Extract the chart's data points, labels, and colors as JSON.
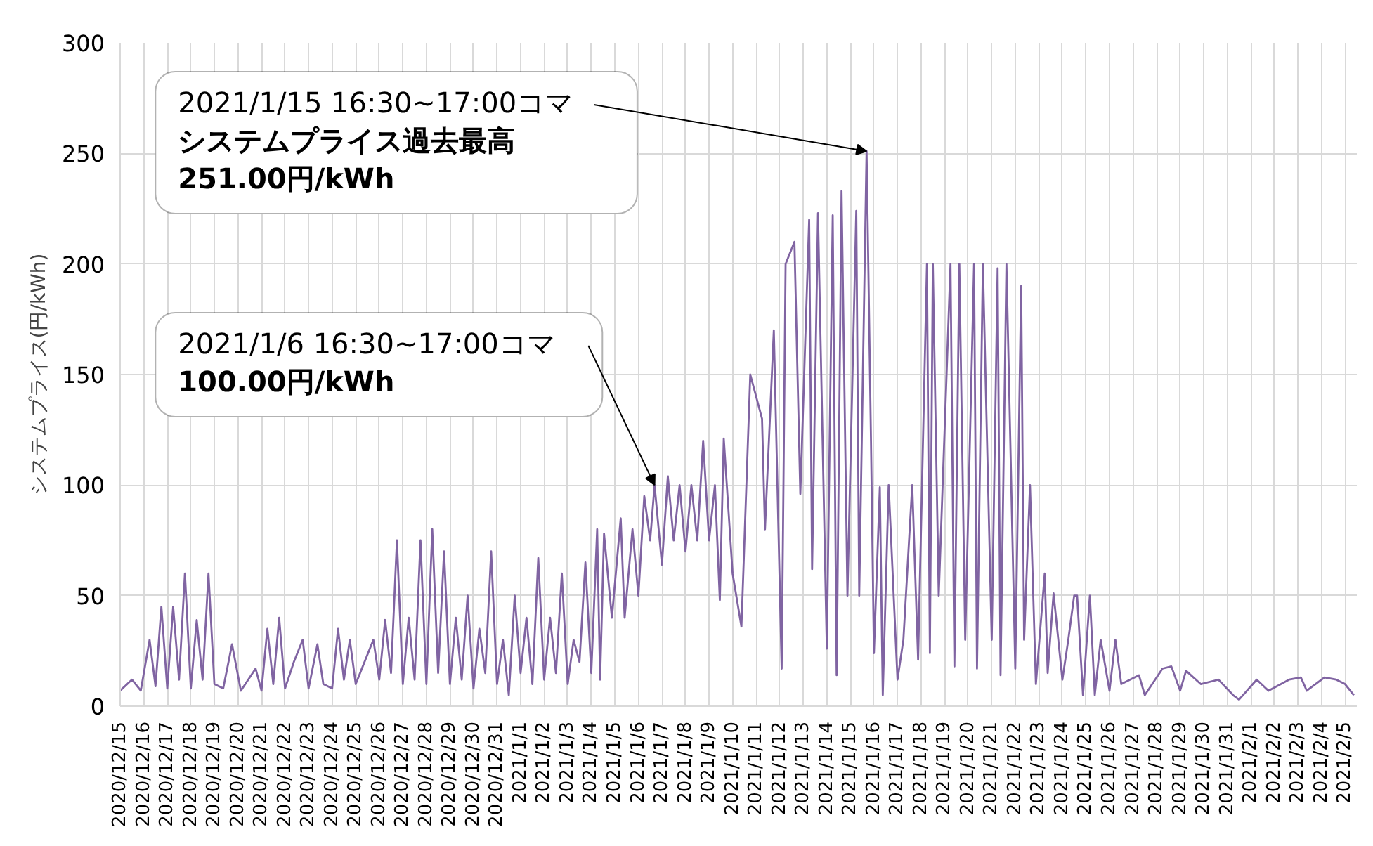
{
  "chart_data": {
    "type": "line",
    "ylabel": "システムプライス(円/kWh)",
    "xlim": [
      "2020-12-15",
      "2021-02-05T12:00"
    ],
    "ylim": [
      0,
      300
    ],
    "yticks": [
      0,
      50,
      100,
      150,
      200,
      250,
      300
    ],
    "xticks": [
      {
        "value": "2020-12-15",
        "label": "2020/12/15"
      },
      {
        "value": "2020-12-16",
        "label": "2020/12/16"
      },
      {
        "value": "2020-12-17",
        "label": "2020/12/17"
      },
      {
        "value": "2020-12-18",
        "label": "2020/12/18"
      },
      {
        "value": "2020-12-19",
        "label": "2020/12/19"
      },
      {
        "value": "2020-12-20",
        "label": "2020/12/20"
      },
      {
        "value": "2020-12-21",
        "label": "2020/12/21"
      },
      {
        "value": "2020-12-22",
        "label": "2020/12/22"
      },
      {
        "value": "2020-12-23",
        "label": "2020/12/23"
      },
      {
        "value": "2020-12-24",
        "label": "2020/12/24"
      },
      {
        "value": "2020-12-25",
        "label": "2020/12/25"
      },
      {
        "value": "2020-12-26",
        "label": "2020/12/26"
      },
      {
        "value": "2020-12-27",
        "label": "2020/12/27"
      },
      {
        "value": "2020-12-28",
        "label": "2020/12/28"
      },
      {
        "value": "2020-12-29",
        "label": "2020/12/29"
      },
      {
        "value": "2020-12-30",
        "label": "2020/12/30"
      },
      {
        "value": "2020-12-31",
        "label": "2020/12/31"
      },
      {
        "value": "2021-01-01",
        "label": "2021/1/1"
      },
      {
        "value": "2021-01-02",
        "label": "2021/1/2"
      },
      {
        "value": "2021-01-03",
        "label": "2021/1/3"
      },
      {
        "value": "2021-01-04",
        "label": "2021/1/4"
      },
      {
        "value": "2021-01-05",
        "label": "2021/1/5"
      },
      {
        "value": "2021-01-06",
        "label": "2021/1/6"
      },
      {
        "value": "2021-01-07",
        "label": "2021/1/7"
      },
      {
        "value": "2021-01-08",
        "label": "2021/1/8"
      },
      {
        "value": "2021-01-09",
        "label": "2021/1/9"
      },
      {
        "value": "2021-01-10",
        "label": "2021/1/10"
      },
      {
        "value": "2021-01-11",
        "label": "2021/1/11"
      },
      {
        "value": "2021-01-12",
        "label": "2021/1/12"
      },
      {
        "value": "2021-01-13",
        "label": "2021/1/13"
      },
      {
        "value": "2021-01-14",
        "label": "2021/1/14"
      },
      {
        "value": "2021-01-15",
        "label": "2021/1/15"
      },
      {
        "value": "2021-01-16",
        "label": "2021/1/16"
      },
      {
        "value": "2021-01-17",
        "label": "2021/1/17"
      },
      {
        "value": "2021-01-18",
        "label": "2021/1/18"
      },
      {
        "value": "2021-01-19",
        "label": "2021/1/19"
      },
      {
        "value": "2021-01-20",
        "label": "2021/1/20"
      },
      {
        "value": "2021-01-21",
        "label": "2021/1/21"
      },
      {
        "value": "2021-01-22",
        "label": "2021/1/22"
      },
      {
        "value": "2021-01-23",
        "label": "2021/1/23"
      },
      {
        "value": "2021-01-24",
        "label": "2021/1/24"
      },
      {
        "value": "2021-01-25",
        "label": "2021/1/25"
      },
      {
        "value": "2021-01-26",
        "label": "2021/1/26"
      },
      {
        "value": "2021-01-27",
        "label": "2021/1/27"
      },
      {
        "value": "2021-01-28",
        "label": "2021/1/28"
      },
      {
        "value": "2021-01-29",
        "label": "2021/1/29"
      },
      {
        "value": "2021-01-30",
        "label": "2021/1/30"
      },
      {
        "value": "2021-01-31",
        "label": "2021/1/31"
      },
      {
        "value": "2021-02-01",
        "label": "2021/2/1"
      },
      {
        "value": "2021-02-02",
        "label": "2021/2/2"
      },
      {
        "value": "2021-02-03",
        "label": "2021/2/3"
      },
      {
        "value": "2021-02-04",
        "label": "2021/2/4"
      },
      {
        "value": "2021-02-05",
        "label": "2021/2/5"
      }
    ],
    "grid": true,
    "series": [
      {
        "color": "#8064a2",
        "x": [
          "2020-12-15T00:00",
          "2020-12-15T12:00",
          "2020-12-15T21:00",
          "2020-12-16T06:00",
          "2020-12-16T12:00",
          "2020-12-16T18:00",
          "2020-12-17T00:00",
          "2020-12-17T06:00",
          "2020-12-17T12:00",
          "2020-12-17T18:00",
          "2020-12-18T00:00",
          "2020-12-18T06:00",
          "2020-12-18T12:00",
          "2020-12-18T18:00",
          "2020-12-19T00:00",
          "2020-12-19T09:00",
          "2020-12-19T18:00",
          "2020-12-20T03:00",
          "2020-12-20T18:00",
          "2020-12-21T00:00",
          "2020-12-21T06:00",
          "2020-12-21T12:00",
          "2020-12-21T18:00",
          "2020-12-22T00:00",
          "2020-12-22T09:00",
          "2020-12-22T18:00",
          "2020-12-23T00:00",
          "2020-12-23T09:00",
          "2020-12-23T15:00",
          "2020-12-24T00:00",
          "2020-12-24T06:00",
          "2020-12-24T12:00",
          "2020-12-24T18:00",
          "2020-12-25T00:00",
          "2020-12-25T18:00",
          "2020-12-26T00:00",
          "2020-12-26T06:00",
          "2020-12-26T12:00",
          "2020-12-26T18:00",
          "2020-12-27T00:00",
          "2020-12-27T06:00",
          "2020-12-27T12:00",
          "2020-12-27T18:00",
          "2020-12-28T00:00",
          "2020-12-28T06:00",
          "2020-12-28T12:00",
          "2020-12-28T18:00",
          "2020-12-29T00:00",
          "2020-12-29T06:00",
          "2020-12-29T12:00",
          "2020-12-29T18:00",
          "2020-12-30T00:00",
          "2020-12-30T06:00",
          "2020-12-30T12:00",
          "2020-12-30T18:00",
          "2020-12-31T00:00",
          "2020-12-31T06:00",
          "2020-12-31T12:00",
          "2020-12-31T18:00",
          "2021-01-01T00:00",
          "2021-01-01T06:00",
          "2021-01-01T12:00",
          "2021-01-01T18:00",
          "2021-01-02T00:00",
          "2021-01-02T06:00",
          "2021-01-02T12:00",
          "2021-01-02T18:00",
          "2021-01-03T00:00",
          "2021-01-03T06:00",
          "2021-01-03T12:00",
          "2021-01-03T18:00",
          "2021-01-04T00:00",
          "2021-01-04T06:00",
          "2021-01-04T09:00",
          "2021-01-04T13:00",
          "2021-01-04T21:00",
          "2021-01-05T06:00",
          "2021-01-05T10:00",
          "2021-01-05T18:00",
          "2021-01-06T00:00",
          "2021-01-06T06:00",
          "2021-01-06T12:00",
          "2021-01-06T16:30",
          "2021-01-07T00:00",
          "2021-01-07T06:00",
          "2021-01-07T12:00",
          "2021-01-07T18:00",
          "2021-01-08T00:00",
          "2021-01-08T06:00",
          "2021-01-08T12:00",
          "2021-01-08T18:00",
          "2021-01-09T00:00",
          "2021-01-09T06:00",
          "2021-01-09T11:00",
          "2021-01-09T15:00",
          "2021-01-10T00:00",
          "2021-01-10T09:00",
          "2021-01-10T18:00",
          "2021-01-11T06:00",
          "2021-01-11T09:00",
          "2021-01-11T18:00",
          "2021-01-12T02:00",
          "2021-01-12T06:00",
          "2021-01-12T15:00",
          "2021-01-12T21:00",
          "2021-01-13T06:00",
          "2021-01-13T09:00",
          "2021-01-13T15:00",
          "2021-01-14T00:00",
          "2021-01-14T06:00",
          "2021-01-14T10:00",
          "2021-01-14T15:00",
          "2021-01-14T21:00",
          "2021-01-15T06:00",
          "2021-01-15T09:00",
          "2021-01-15T16:30",
          "2021-01-15T21:00",
          "2021-01-16T00:00",
          "2021-01-16T06:00",
          "2021-01-16T09:00",
          "2021-01-16T15:00",
          "2021-01-17T00:00",
          "2021-01-17T06:00",
          "2021-01-17T15:00",
          "2021-01-17T21:00",
          "2021-01-18T06:00",
          "2021-01-18T09:00",
          "2021-01-18T12:00",
          "2021-01-18T18:00",
          "2021-01-19T06:00",
          "2021-01-19T10:00",
          "2021-01-19T15:00",
          "2021-01-19T21:00",
          "2021-01-20T06:00",
          "2021-01-20T09:00",
          "2021-01-20T15:00",
          "2021-01-21T00:00",
          "2021-01-21T06:00",
          "2021-01-21T09:00",
          "2021-01-21T15:00",
          "2021-01-22T00:00",
          "2021-01-22T06:00",
          "2021-01-22T09:00",
          "2021-01-22T15:00",
          "2021-01-22T21:00",
          "2021-01-23T06:00",
          "2021-01-23T09:00",
          "2021-01-23T15:00",
          "2021-01-24T00:00",
          "2021-01-24T06:00",
          "2021-01-24T12:00",
          "2021-01-24T15:00",
          "2021-01-24T21:00",
          "2021-01-25T04:00",
          "2021-01-25T09:00",
          "2021-01-25T15:00",
          "2021-01-26T00:00",
          "2021-01-26T06:00",
          "2021-01-26T12:00",
          "2021-01-27T06:00",
          "2021-01-27T12:00",
          "2021-01-28T06:00",
          "2021-01-28T15:00",
          "2021-01-29T00:00",
          "2021-01-29T06:00",
          "2021-01-29T21:00",
          "2021-01-30T15:00",
          "2021-01-31T06:00",
          "2021-01-31T12:00",
          "2021-02-01T06:00",
          "2021-02-01T18:00",
          "2021-02-02T15:00",
          "2021-02-03T03:00",
          "2021-02-03T09:00",
          "2021-02-04T03:00",
          "2021-02-04T15:00",
          "2021-02-05T00:00",
          "2021-02-05T09:00"
        ],
        "values": [
          7,
          12,
          7,
          30,
          9,
          45,
          8,
          45,
          12,
          60,
          8,
          39,
          12,
          60,
          10,
          8,
          28,
          7,
          17,
          7,
          35,
          10,
          40,
          8,
          20,
          30,
          8,
          28,
          10,
          8,
          35,
          12,
          30,
          10,
          30,
          12,
          39,
          15,
          75,
          10,
          40,
          12,
          75,
          10,
          80,
          15,
          70,
          10,
          40,
          12,
          50,
          8,
          35,
          15,
          70,
          10,
          30,
          5,
          50,
          15,
          40,
          10,
          67,
          12,
          40,
          15,
          60,
          10,
          30,
          20,
          65,
          15,
          80,
          12,
          78,
          40,
          85,
          40,
          80,
          50,
          95,
          75,
          100,
          64,
          104,
          75,
          100,
          70,
          100,
          75,
          120,
          75,
          100,
          48,
          121,
          60,
          36,
          150,
          130,
          80,
          170,
          17,
          200,
          210,
          96,
          220,
          62,
          223,
          26,
          222,
          14,
          233,
          50,
          224,
          50,
          251,
          120,
          24,
          99,
          5,
          100,
          12,
          30,
          100,
          21,
          200,
          24,
          200,
          50,
          200,
          18,
          200,
          30,
          200,
          17,
          200,
          30,
          198,
          14,
          200,
          17,
          190,
          30,
          100,
          10,
          60,
          15,
          51,
          12,
          30,
          50,
          50,
          5,
          50,
          5,
          30,
          7,
          30,
          10,
          14,
          5,
          17,
          18,
          7,
          16,
          10,
          12,
          5,
          3,
          12,
          7,
          12,
          13,
          7,
          13,
          12,
          10,
          5
        ]
      }
    ],
    "annotations": [
      {
        "text": "2021/1/15  16:30~17:00コマ",
        "x": "2021-01-15T16:30",
        "y": 251
      },
      "システムプライス過去最高",
      "251.00円/kWh",
      {
        "text": "2021/1/6 16:30~17:00コマ",
        "x": "2021-01-06T16:30",
        "y": 100
      },
      "100.00円/kWh"
    ]
  }
}
